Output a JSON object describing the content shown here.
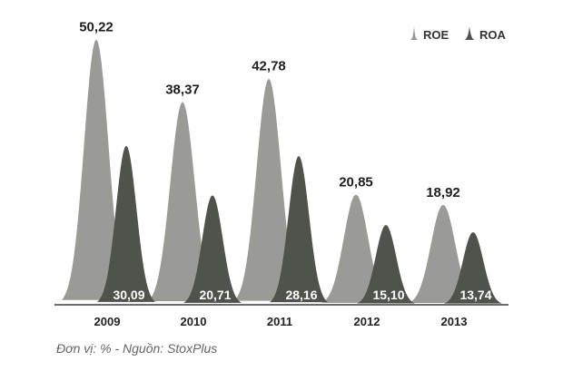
{
  "chart_data": {
    "type": "area",
    "categories": [
      "2009",
      "2010",
      "2011",
      "2012",
      "2013"
    ],
    "series": [
      {
        "name": "ROE",
        "values": [
          50.22,
          38.37,
          42.78,
          20.85,
          18.92
        ],
        "labels": [
          "50,22",
          "38,37",
          "42,78",
          "20,85",
          "18,92"
        ],
        "color": "#9a9a96"
      },
      {
        "name": "ROA",
        "values": [
          30.09,
          20.71,
          28.16,
          15.1,
          13.74
        ],
        "labels": [
          "30,09",
          "20,71",
          "28,16",
          "15,10",
          "13,74"
        ],
        "color": "#4f534b"
      }
    ],
    "ylim": [
      0,
      52
    ],
    "legend_position": "top-right",
    "grid": false
  },
  "footnote": "Đơn vị: % - Nguồn: StoxPlus"
}
